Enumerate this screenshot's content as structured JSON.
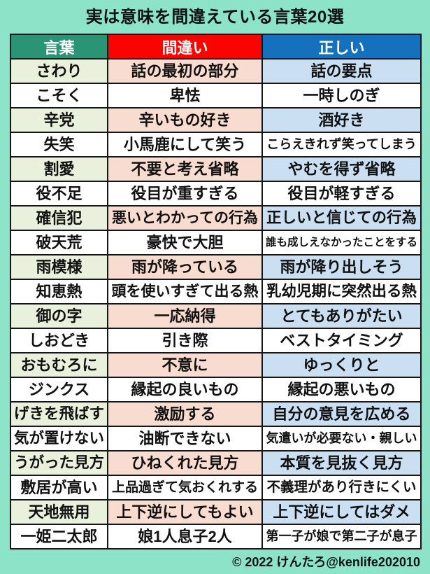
{
  "title": "実は意味を間違えている言葉20選",
  "colors": {
    "background": "#8CE3C8",
    "text": "#111111",
    "border": "#161616",
    "header-text": "#FFFFFF",
    "header-word-bg": "#2A9474",
    "header-wrong-bg": "#FA0400",
    "header-correct-bg": "#1471BD",
    "cell-word-bg": "#E9F1DC",
    "cell-wrong-bg": "#F8DCD0",
    "cell-correct-bg": "#CBDFF2",
    "cell-white-bg": "#FFFFFF"
  },
  "table": {
    "headers": [
      "言葉",
      "間違い",
      "正しい"
    ],
    "rows": [
      {
        "word": "さわり",
        "wrong": "話の最初の部分",
        "correct": "話の要点"
      },
      {
        "word": "こそく",
        "wrong": "卑怯",
        "correct": "一時しのぎ"
      },
      {
        "word": "辛党",
        "wrong": "辛いもの好き",
        "correct": "酒好き"
      },
      {
        "word": "失笑",
        "wrong": "小馬鹿にして笑う",
        "correct": "こらえきれず笑ってしまう"
      },
      {
        "word": "割愛",
        "wrong": "不要と考え省略",
        "correct": "やむを得ず省略"
      },
      {
        "word": "役不足",
        "wrong": "役目が重すぎる",
        "correct": "役目が軽すぎる"
      },
      {
        "word": "確信犯",
        "wrong": "悪いとわかっての行為",
        "correct": "正しいと信じての行為"
      },
      {
        "word": "破天荒",
        "wrong": "豪快で大胆",
        "correct": "誰も成しえなかったことをする"
      },
      {
        "word": "雨模様",
        "wrong": "雨が降っている",
        "correct": "雨が降り出しそう"
      },
      {
        "word": "知恵熱",
        "wrong": "頭を使いすぎて出る熱",
        "correct": "乳幼児期に突然出る熱"
      },
      {
        "word": "御の字",
        "wrong": "一応納得",
        "correct": "とてもありがたい"
      },
      {
        "word": "しおどき",
        "wrong": "引き際",
        "correct": "ベストタイミング"
      },
      {
        "word": "おもむろに",
        "wrong": "不意に",
        "correct": "ゆっくりと"
      },
      {
        "word": "ジンクス",
        "wrong": "縁起の良いもの",
        "correct": "縁起の悪いもの"
      },
      {
        "word": "げきを飛ばす",
        "wrong": "激励する",
        "correct": "自分の意見を広める"
      },
      {
        "word": "気が置けない",
        "wrong": "油断できない",
        "correct": "気遣いが必要ない・親しい"
      },
      {
        "word": "うがった見方",
        "wrong": "ひねくれた見方",
        "correct": "本質を見抜く見方"
      },
      {
        "word": "敷居が高い",
        "wrong": "上品過ぎて気おくれする",
        "correct": "不義理があり行きにくい"
      },
      {
        "word": "天地無用",
        "wrong": "上下逆にしてもよい",
        "correct": "上下逆にしてはダメ"
      },
      {
        "word": "一姫二太郎",
        "wrong": "娘1人息子2人",
        "correct": "第一子が娘で第二子が息子"
      }
    ]
  },
  "footer": {
    "copyright": "© 2022 けんたろ@kenlife202010"
  }
}
